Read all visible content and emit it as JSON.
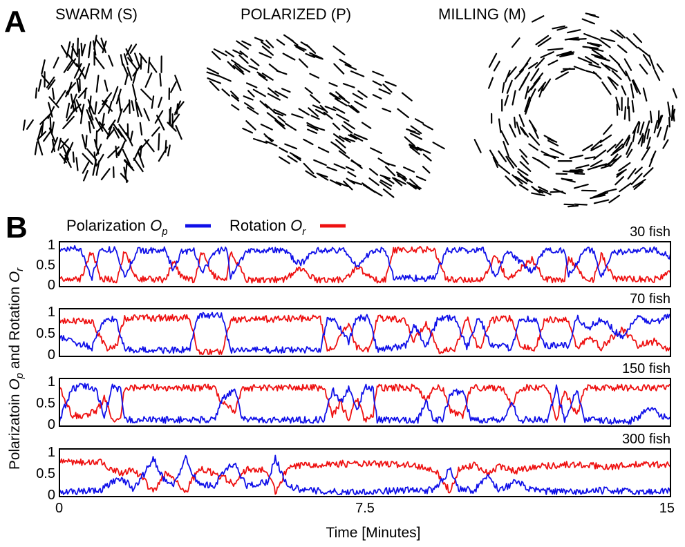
{
  "panel_a": {
    "label": "A",
    "states": [
      {
        "key": "swarm",
        "title": "SWARM (S)"
      },
      {
        "key": "polarized",
        "title": "POLARIZED (P)"
      },
      {
        "key": "milling",
        "title": "MILLING (M)"
      }
    ]
  },
  "panel_b": {
    "label": "B",
    "legend": {
      "polarization": {
        "text": "Polarization ",
        "symbol": "O",
        "sub": "p",
        "color": "#1010e8"
      },
      "rotation": {
        "text": "Rotation ",
        "symbol": "O",
        "sub": "r",
        "color": "#ee1111"
      }
    }
  },
  "chart_data": {
    "type": "line",
    "x_unit": "minutes",
    "xlim": [
      0,
      15
    ],
    "ylim": [
      0,
      1
    ],
    "xticks": [
      "0",
      "7.5",
      "15"
    ],
    "yticks": [
      "0",
      "0.5",
      "1"
    ],
    "xlabel": "Time [Minutes]",
    "ylabel": {
      "p1": "Polarizatoin ",
      "s1": "O",
      "sub1": "p",
      "p2": " and Rotation ",
      "s2": "O",
      "sub2": "r"
    },
    "series_colors": {
      "polarization": "#1010e8",
      "rotation": "#ee1111"
    },
    "panels": [
      {
        "label": "30 fish",
        "polarization": [
          [
            0,
            0.88
          ],
          [
            0.5,
            0.9
          ],
          [
            0.8,
            0.18
          ],
          [
            1.0,
            0.86
          ],
          [
            1.4,
            0.88
          ],
          [
            1.6,
            0.15
          ],
          [
            1.9,
            0.85
          ],
          [
            2.6,
            0.86
          ],
          [
            2.8,
            0.35
          ],
          [
            3.0,
            0.82
          ],
          [
            3.3,
            0.86
          ],
          [
            3.5,
            0.25
          ],
          [
            3.8,
            0.8
          ],
          [
            4.1,
            0.9
          ],
          [
            4.2,
            0.2
          ],
          [
            4.6,
            0.86
          ],
          [
            5.5,
            0.86
          ],
          [
            5.9,
            0.5
          ],
          [
            6.3,
            0.86
          ],
          [
            7.0,
            0.85
          ],
          [
            7.3,
            0.45
          ],
          [
            7.7,
            0.85
          ],
          [
            8.0,
            0.86
          ],
          [
            8.2,
            0.18
          ],
          [
            9.2,
            0.15
          ],
          [
            9.5,
            0.85
          ],
          [
            10.4,
            0.86
          ],
          [
            10.7,
            0.2
          ],
          [
            11.0,
            0.86
          ],
          [
            11.6,
            0.3
          ],
          [
            11.9,
            0.85
          ],
          [
            12.4,
            0.85
          ],
          [
            12.5,
            0.25
          ],
          [
            12.9,
            0.85
          ],
          [
            13.1,
            0.86
          ],
          [
            13.3,
            0.2
          ],
          [
            13.6,
            0.8
          ],
          [
            14.6,
            0.86
          ],
          [
            15.0,
            0.7
          ]
        ],
        "rotation": [
          [
            0,
            0.15
          ],
          [
            0.5,
            0.12
          ],
          [
            0.8,
            0.85
          ],
          [
            1.0,
            0.15
          ],
          [
            1.4,
            0.12
          ],
          [
            1.6,
            0.85
          ],
          [
            1.9,
            0.15
          ],
          [
            2.6,
            0.12
          ],
          [
            2.8,
            0.55
          ],
          [
            3.0,
            0.18
          ],
          [
            3.3,
            0.12
          ],
          [
            3.5,
            0.8
          ],
          [
            3.8,
            0.2
          ],
          [
            4.1,
            0.1
          ],
          [
            4.2,
            0.82
          ],
          [
            4.6,
            0.12
          ],
          [
            5.5,
            0.12
          ],
          [
            5.9,
            0.4
          ],
          [
            6.3,
            0.12
          ],
          [
            7.0,
            0.12
          ],
          [
            7.3,
            0.45
          ],
          [
            7.7,
            0.12
          ],
          [
            8.0,
            0.12
          ],
          [
            8.2,
            0.86
          ],
          [
            9.2,
            0.88
          ],
          [
            9.5,
            0.12
          ],
          [
            10.4,
            0.12
          ],
          [
            10.7,
            0.75
          ],
          [
            11.0,
            0.12
          ],
          [
            11.6,
            0.65
          ],
          [
            11.9,
            0.12
          ],
          [
            12.4,
            0.12
          ],
          [
            12.5,
            0.7
          ],
          [
            12.9,
            0.12
          ],
          [
            13.1,
            0.12
          ],
          [
            13.3,
            0.75
          ],
          [
            13.6,
            0.15
          ],
          [
            14.6,
            0.12
          ],
          [
            15.0,
            0.3
          ]
        ]
      },
      {
        "label": "70 fish",
        "polarization": [
          [
            0,
            0.4
          ],
          [
            0.8,
            0.15
          ],
          [
            1.0,
            0.6
          ],
          [
            1.2,
            0.85
          ],
          [
            1.4,
            0.8
          ],
          [
            1.6,
            0.1
          ],
          [
            3.2,
            0.1
          ],
          [
            3.4,
            0.9
          ],
          [
            4.0,
            0.9
          ],
          [
            4.2,
            0.1
          ],
          [
            6.4,
            0.1
          ],
          [
            6.6,
            0.9
          ],
          [
            6.8,
            0.75
          ],
          [
            7.1,
            0.3
          ],
          [
            7.3,
            0.85
          ],
          [
            7.6,
            0.85
          ],
          [
            7.8,
            0.1
          ],
          [
            8.5,
            0.2
          ],
          [
            8.7,
            0.7
          ],
          [
            9.0,
            0.2
          ],
          [
            9.3,
            0.85
          ],
          [
            9.7,
            0.85
          ],
          [
            10.0,
            0.15
          ],
          [
            10.3,
            0.9
          ],
          [
            10.6,
            0.2
          ],
          [
            11.1,
            0.15
          ],
          [
            11.3,
            0.85
          ],
          [
            11.7,
            0.8
          ],
          [
            11.9,
            0.2
          ],
          [
            12.5,
            0.2
          ],
          [
            12.7,
            0.85
          ],
          [
            13.0,
            0.6
          ],
          [
            13.3,
            0.85
          ],
          [
            13.8,
            0.4
          ],
          [
            14.2,
            0.85
          ],
          [
            14.6,
            0.75
          ],
          [
            15.0,
            0.9
          ]
        ],
        "rotation": [
          [
            0,
            0.75
          ],
          [
            0.8,
            0.8
          ],
          [
            1.0,
            0.4
          ],
          [
            1.2,
            0.1
          ],
          [
            1.4,
            0.2
          ],
          [
            1.6,
            0.85
          ],
          [
            3.2,
            0.85
          ],
          [
            3.4,
            0.05
          ],
          [
            4.0,
            0.05
          ],
          [
            4.2,
            0.8
          ],
          [
            6.4,
            0.85
          ],
          [
            6.6,
            0.05
          ],
          [
            6.8,
            0.25
          ],
          [
            7.1,
            0.7
          ],
          [
            7.3,
            0.15
          ],
          [
            7.6,
            0.1
          ],
          [
            7.8,
            0.85
          ],
          [
            8.5,
            0.8
          ],
          [
            8.7,
            0.3
          ],
          [
            9.0,
            0.75
          ],
          [
            9.3,
            0.1
          ],
          [
            9.7,
            0.1
          ],
          [
            10.0,
            0.85
          ],
          [
            10.3,
            0.1
          ],
          [
            10.6,
            0.8
          ],
          [
            11.1,
            0.85
          ],
          [
            11.3,
            0.15
          ],
          [
            11.7,
            0.15
          ],
          [
            11.9,
            0.8
          ],
          [
            12.5,
            0.8
          ],
          [
            12.7,
            0.15
          ],
          [
            13.0,
            0.4
          ],
          [
            13.3,
            0.15
          ],
          [
            13.8,
            0.6
          ],
          [
            14.2,
            0.2
          ],
          [
            14.6,
            0.3
          ],
          [
            15.0,
            0.1
          ]
        ]
      },
      {
        "label": "150 fish",
        "polarization": [
          [
            0,
            0.1
          ],
          [
            0.3,
            0.8
          ],
          [
            0.6,
            0.9
          ],
          [
            0.9,
            0.8
          ],
          [
            1.1,
            0.2
          ],
          [
            1.3,
            0.85
          ],
          [
            1.5,
            0.8
          ],
          [
            1.6,
            0.1
          ],
          [
            3.8,
            0.1
          ],
          [
            4.0,
            0.6
          ],
          [
            4.3,
            0.8
          ],
          [
            4.5,
            0.1
          ],
          [
            6.5,
            0.1
          ],
          [
            6.7,
            0.8
          ],
          [
            6.9,
            0.5
          ],
          [
            7.1,
            0.85
          ],
          [
            7.3,
            0.3
          ],
          [
            7.5,
            0.9
          ],
          [
            7.7,
            0.8
          ],
          [
            7.8,
            0.1
          ],
          [
            8.8,
            0.1
          ],
          [
            9.0,
            0.5
          ],
          [
            9.2,
            0.1
          ],
          [
            9.4,
            0.1
          ],
          [
            9.6,
            0.7
          ],
          [
            9.9,
            0.8
          ],
          [
            10.1,
            0.1
          ],
          [
            10.9,
            0.1
          ],
          [
            11.1,
            0.5
          ],
          [
            11.3,
            0.1
          ],
          [
            12.0,
            0.1
          ],
          [
            12.2,
            0.85
          ],
          [
            12.4,
            0.1
          ],
          [
            12.7,
            0.8
          ],
          [
            12.9,
            0.1
          ],
          [
            14.0,
            0.05
          ],
          [
            14.5,
            0.35
          ],
          [
            15.0,
            0.1
          ]
        ],
        "rotation": [
          [
            0,
            0.85
          ],
          [
            0.3,
            0.2
          ],
          [
            0.6,
            0.2
          ],
          [
            0.9,
            0.3
          ],
          [
            1.1,
            0.6
          ],
          [
            1.3,
            0.1
          ],
          [
            1.5,
            0.2
          ],
          [
            1.6,
            0.85
          ],
          [
            3.8,
            0.85
          ],
          [
            4.0,
            0.5
          ],
          [
            4.3,
            0.3
          ],
          [
            4.5,
            0.85
          ],
          [
            6.5,
            0.85
          ],
          [
            6.7,
            0.2
          ],
          [
            6.9,
            0.5
          ],
          [
            7.1,
            0.1
          ],
          [
            7.3,
            0.6
          ],
          [
            7.5,
            0.1
          ],
          [
            7.7,
            0.2
          ],
          [
            7.8,
            0.85
          ],
          [
            8.8,
            0.85
          ],
          [
            9.0,
            0.5
          ],
          [
            9.2,
            0.85
          ],
          [
            9.4,
            0.85
          ],
          [
            9.6,
            0.3
          ],
          [
            9.9,
            0.2
          ],
          [
            10.1,
            0.85
          ],
          [
            10.9,
            0.85
          ],
          [
            11.1,
            0.4
          ],
          [
            11.3,
            0.85
          ],
          [
            12.0,
            0.85
          ],
          [
            12.2,
            0.1
          ],
          [
            12.4,
            0.8
          ],
          [
            12.7,
            0.2
          ],
          [
            12.9,
            0.85
          ],
          [
            14.0,
            0.85
          ],
          [
            14.5,
            0.85
          ],
          [
            15.0,
            0.85
          ]
        ]
      },
      {
        "label": "300 fish",
        "polarization": [
          [
            0,
            0.05
          ],
          [
            1.0,
            0.1
          ],
          [
            1.5,
            0.4
          ],
          [
            1.8,
            0.15
          ],
          [
            2.1,
            0.5
          ],
          [
            2.3,
            0.85
          ],
          [
            2.6,
            0.3
          ],
          [
            2.8,
            0.2
          ],
          [
            3.1,
            0.85
          ],
          [
            3.4,
            0.25
          ],
          [
            3.8,
            0.2
          ],
          [
            4.1,
            0.6
          ],
          [
            4.3,
            0.7
          ],
          [
            4.6,
            0.2
          ],
          [
            5.1,
            0.3
          ],
          [
            5.3,
            0.85
          ],
          [
            5.6,
            0.2
          ],
          [
            6.0,
            0.1
          ],
          [
            7.0,
            0.05
          ],
          [
            8.5,
            0.1
          ],
          [
            9.2,
            0.1
          ],
          [
            9.6,
            0.6
          ],
          [
            9.8,
            0.15
          ],
          [
            10.2,
            0.1
          ],
          [
            10.5,
            0.45
          ],
          [
            10.8,
            0.1
          ],
          [
            11.2,
            0.3
          ],
          [
            11.6,
            0.1
          ],
          [
            12.5,
            0.05
          ],
          [
            13.5,
            0.1
          ],
          [
            14.3,
            0.05
          ],
          [
            15.0,
            0.1
          ]
        ],
        "rotation": [
          [
            0,
            0.75
          ],
          [
            1.0,
            0.75
          ],
          [
            1.5,
            0.5
          ],
          [
            1.8,
            0.6
          ],
          [
            2.1,
            0.3
          ],
          [
            2.3,
            0.05
          ],
          [
            2.6,
            0.5
          ],
          [
            2.8,
            0.4
          ],
          [
            3.1,
            0.05
          ],
          [
            3.4,
            0.6
          ],
          [
            3.8,
            0.5
          ],
          [
            4.1,
            0.35
          ],
          [
            4.3,
            0.25
          ],
          [
            4.6,
            0.6
          ],
          [
            5.1,
            0.55
          ],
          [
            5.3,
            0.05
          ],
          [
            5.6,
            0.6
          ],
          [
            6.0,
            0.7
          ],
          [
            7.0,
            0.72
          ],
          [
            8.5,
            0.7
          ],
          [
            9.2,
            0.6
          ],
          [
            9.6,
            0.05
          ],
          [
            9.8,
            0.6
          ],
          [
            10.2,
            0.7
          ],
          [
            10.5,
            0.5
          ],
          [
            10.8,
            0.65
          ],
          [
            11.2,
            0.55
          ],
          [
            11.6,
            0.65
          ],
          [
            12.5,
            0.7
          ],
          [
            13.5,
            0.65
          ],
          [
            14.3,
            0.7
          ],
          [
            15.0,
            0.7
          ]
        ]
      }
    ]
  }
}
